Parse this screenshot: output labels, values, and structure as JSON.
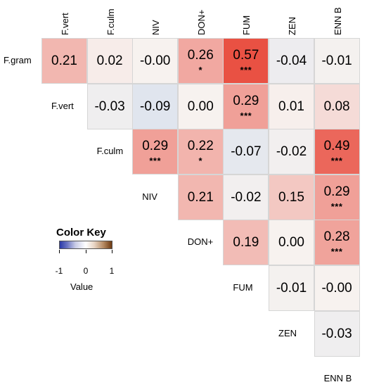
{
  "chart_data": {
    "type": "heatmap",
    "title": "",
    "xlabel": "",
    "ylabel": "",
    "variables": [
      "F.gram",
      "F.vert",
      "F.culm",
      "NIV",
      "DON+",
      "FUM",
      "ZEN",
      "ENN B"
    ],
    "cells": [
      {
        "row": "F.gram",
        "col": "F.vert",
        "value": 0.21,
        "label": "0.21",
        "sig": ""
      },
      {
        "row": "F.gram",
        "col": "F.culm",
        "value": 0.02,
        "label": "0.02",
        "sig": ""
      },
      {
        "row": "F.gram",
        "col": "NIV",
        "value": -0.0,
        "label": "-0.00",
        "sig": ""
      },
      {
        "row": "F.gram",
        "col": "DON+",
        "value": 0.26,
        "label": "0.26",
        "sig": "*"
      },
      {
        "row": "F.gram",
        "col": "FUM",
        "value": 0.57,
        "label": "0.57",
        "sig": "***"
      },
      {
        "row": "F.gram",
        "col": "ZEN",
        "value": -0.04,
        "label": "-0.04",
        "sig": ""
      },
      {
        "row": "F.gram",
        "col": "ENN B",
        "value": -0.01,
        "label": "-0.01",
        "sig": ""
      },
      {
        "row": "F.vert",
        "col": "F.culm",
        "value": -0.03,
        "label": "-0.03",
        "sig": ""
      },
      {
        "row": "F.vert",
        "col": "NIV",
        "value": -0.09,
        "label": "-0.09",
        "sig": ""
      },
      {
        "row": "F.vert",
        "col": "DON+",
        "value": 0.0,
        "label": "0.00",
        "sig": ""
      },
      {
        "row": "F.vert",
        "col": "FUM",
        "value": 0.29,
        "label": "0.29",
        "sig": "***"
      },
      {
        "row": "F.vert",
        "col": "ZEN",
        "value": 0.01,
        "label": "0.01",
        "sig": ""
      },
      {
        "row": "F.vert",
        "col": "ENN B",
        "value": 0.08,
        "label": "0.08",
        "sig": ""
      },
      {
        "row": "F.culm",
        "col": "NIV",
        "value": 0.29,
        "label": "0.29",
        "sig": "***"
      },
      {
        "row": "F.culm",
        "col": "DON+",
        "value": 0.22,
        "label": "0.22",
        "sig": "*"
      },
      {
        "row": "F.culm",
        "col": "FUM",
        "value": -0.07,
        "label": "-0.07",
        "sig": ""
      },
      {
        "row": "F.culm",
        "col": "ZEN",
        "value": -0.02,
        "label": "-0.02",
        "sig": ""
      },
      {
        "row": "F.culm",
        "col": "ENN B",
        "value": 0.49,
        "label": "0.49",
        "sig": "***"
      },
      {
        "row": "NIV",
        "col": "DON+",
        "value": 0.21,
        "label": "0.21",
        "sig": ""
      },
      {
        "row": "NIV",
        "col": "FUM",
        "value": -0.02,
        "label": "-0.02",
        "sig": ""
      },
      {
        "row": "NIV",
        "col": "ZEN",
        "value": 0.15,
        "label": "0.15",
        "sig": ""
      },
      {
        "row": "NIV",
        "col": "ENN B",
        "value": 0.29,
        "label": "0.29",
        "sig": "***"
      },
      {
        "row": "DON+",
        "col": "FUM",
        "value": 0.19,
        "label": "0.19",
        "sig": ""
      },
      {
        "row": "DON+",
        "col": "ZEN",
        "value": 0.0,
        "label": "0.00",
        "sig": ""
      },
      {
        "row": "DON+",
        "col": "ENN B",
        "value": 0.28,
        "label": "0.28",
        "sig": "***"
      },
      {
        "row": "FUM",
        "col": "ZEN",
        "value": -0.01,
        "label": "-0.01",
        "sig": ""
      },
      {
        "row": "FUM",
        "col": "ENN B",
        "value": -0.0,
        "label": "-0.00",
        "sig": ""
      },
      {
        "row": "ZEN",
        "col": "ENN B",
        "value": -0.03,
        "label": "-0.03",
        "sig": ""
      }
    ],
    "legend": {
      "title": "Color Key",
      "sublabel": "Value",
      "range": [
        -1,
        1
      ],
      "ticks": [
        "-1",
        "0",
        "1"
      ],
      "low_color": "#2b3aa8",
      "mid_color": "#ffffff",
      "high_color": "#6e3a12"
    },
    "cell_colors": {
      "negative": "#dde4ee",
      "zero": "#f7f2ef",
      "positive_high": "#e8483a"
    },
    "grid": true
  }
}
